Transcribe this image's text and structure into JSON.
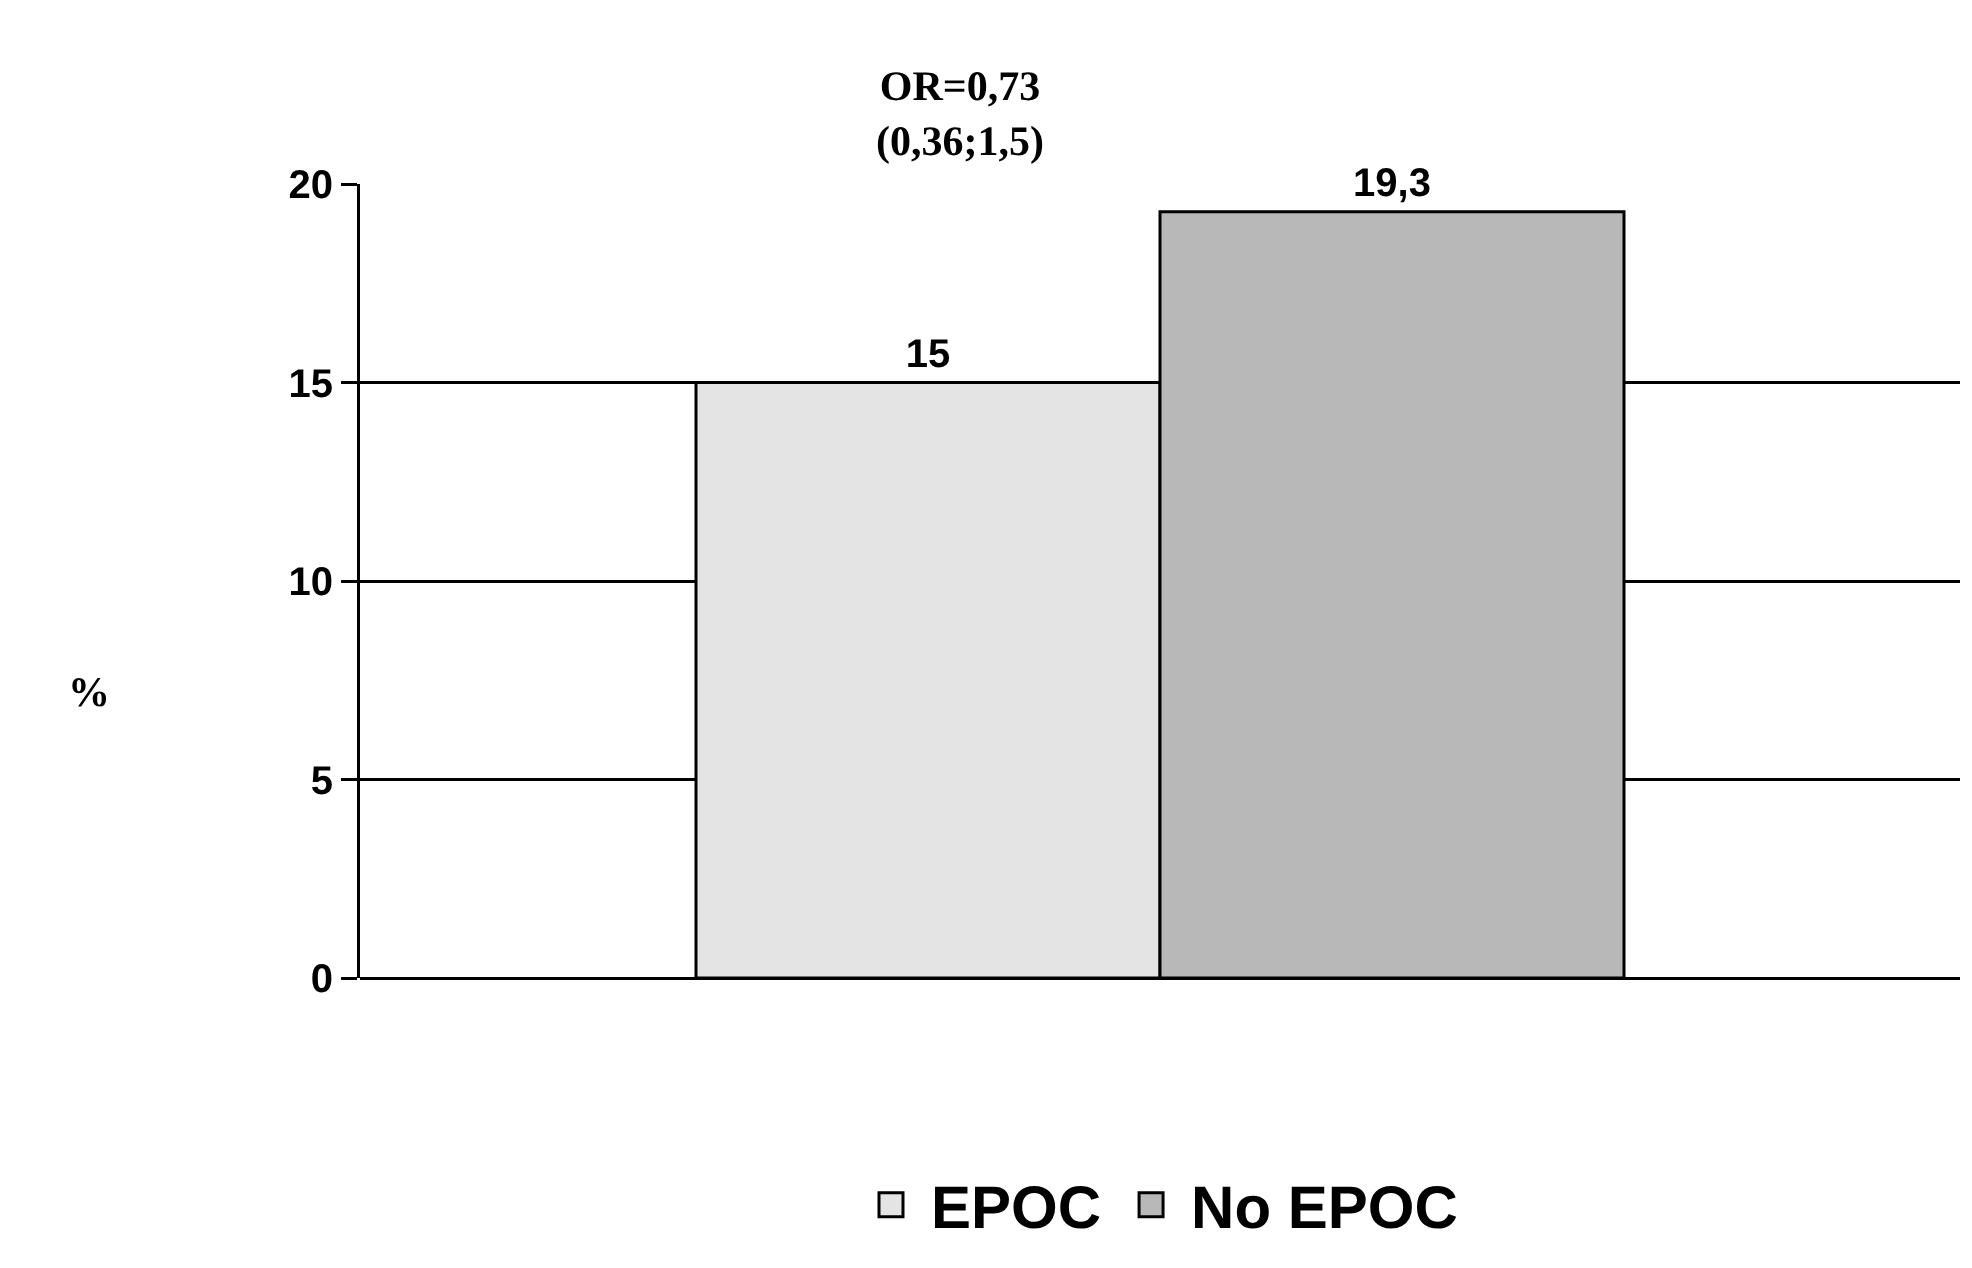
{
  "chart_data": {
    "type": "bar",
    "categories": [
      null
    ],
    "ylabel": "%",
    "annotations": [
      "OR=0,73\n(0,36;1,5)"
    ],
    "series": [
      {
        "name": "EPOC",
        "color": "#e4e4e4",
        "values": [
          15
        ],
        "value_labels": [
          "15"
        ]
      },
      {
        "name": "No EPOC",
        "color": "#b8b8b8",
        "values": [
          19.3
        ],
        "value_labels": [
          "19,3"
        ]
      }
    ],
    "ylim": [
      0,
      20
    ],
    "yticks": [
      0,
      5,
      10,
      15,
      20
    ],
    "grid": "y",
    "legend": "bottom"
  }
}
